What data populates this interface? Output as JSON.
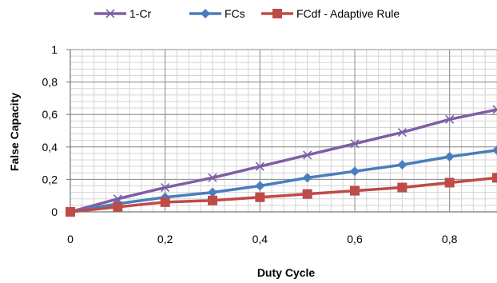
{
  "chart_data": {
    "type": "line",
    "xlabel": "Duty Cycle",
    "ylabel": "False Capacity",
    "x": [
      0,
      0.1,
      0.2,
      0.3,
      0.4,
      0.5,
      0.6,
      0.7,
      0.8,
      0.9
    ],
    "xlim": [
      0,
      0.9
    ],
    "ylim": [
      0,
      1
    ],
    "x_ticks": [
      "0",
      "0,2",
      "0,4",
      "0,6",
      "0,8"
    ],
    "x_tick_values": [
      0,
      0.2,
      0.4,
      0.6,
      0.8
    ],
    "y_ticks": [
      "0",
      "0,2",
      "0,4",
      "0,6",
      "0,8",
      "1"
    ],
    "y_tick_values": [
      0,
      0.2,
      0.4,
      0.6,
      0.8,
      1
    ],
    "grid": true,
    "legend_position": "top",
    "series": [
      {
        "name": "1-Cr",
        "color": "#7F5EA6",
        "marker": "x",
        "values": [
          0,
          0.08,
          0.15,
          0.21,
          0.28,
          0.35,
          0.42,
          0.49,
          0.57,
          0.63
        ]
      },
      {
        "name": "FCs",
        "color": "#4A7EBB",
        "marker": "diamond",
        "values": [
          0,
          0.05,
          0.09,
          0.12,
          0.16,
          0.21,
          0.25,
          0.29,
          0.34,
          0.38
        ]
      },
      {
        "name": "FCdf - Adaptive Rule",
        "color": "#BE4B48",
        "marker": "square",
        "values": [
          0,
          0.03,
          0.06,
          0.07,
          0.09,
          0.11,
          0.13,
          0.15,
          0.18,
          0.21
        ]
      }
    ]
  }
}
